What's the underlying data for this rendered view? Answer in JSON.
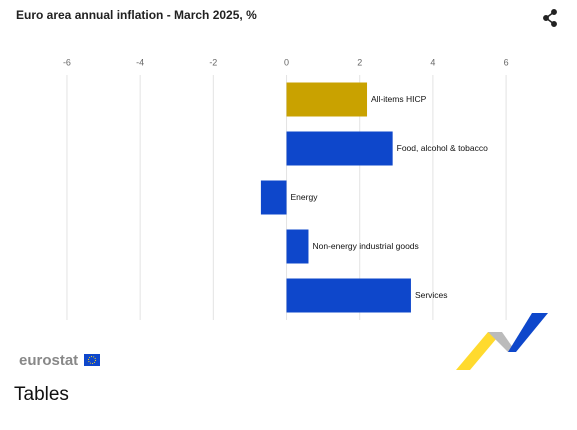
{
  "chart_data": {
    "type": "hbar",
    "title": "Euro area annual inflation - March 2025, %",
    "categories": [
      "All-items HICP",
      "Food, alcohol & tobacco",
      "Energy",
      "Non-energy industrial goods",
      "Services"
    ],
    "values": [
      2.2,
      2.9,
      -0.7,
      0.6,
      3.4
    ],
    "colors": [
      "#c9a200",
      "#0e47cb",
      "#0e47cb",
      "#0e47cb",
      "#0e47cb"
    ],
    "xlim": [
      -6.6,
      7.2
    ],
    "xticks": [
      -6,
      -4,
      -2,
      0,
      2,
      4,
      6
    ],
    "grid": true
  },
  "logo": "eurostat",
  "section_heading": "Tables"
}
